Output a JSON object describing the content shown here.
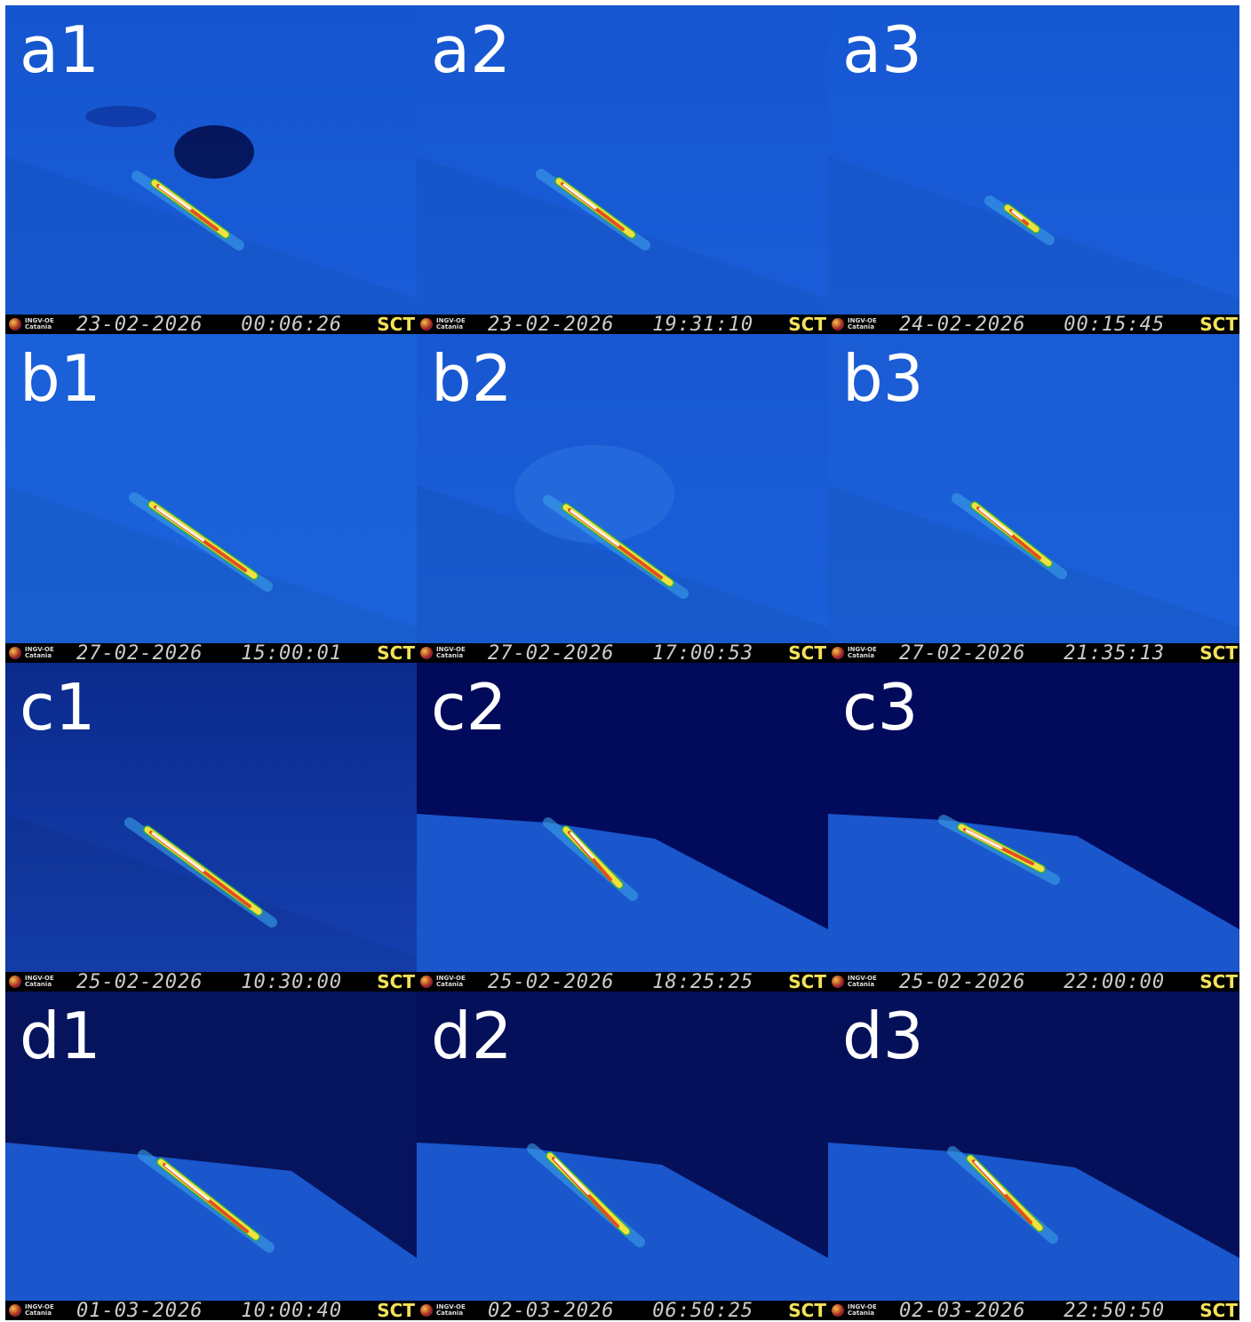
{
  "panels": [
    {
      "label": "a1",
      "date": "23-02-2026",
      "time": "00:06:26",
      "station": "SCT",
      "logo": [
        "INGV-OE",
        "Catania"
      ]
    },
    {
      "label": "a2",
      "date": "23-02-2026",
      "time": "19:31:10",
      "station": "SCT",
      "logo": [
        "INGV-OE",
        "Catania"
      ]
    },
    {
      "label": "a3",
      "date": "24-02-2026",
      "time": "00:15:45",
      "station": "SCT",
      "logo": [
        "INGV-OE",
        "Catania"
      ]
    },
    {
      "label": "b1",
      "date": "27-02-2026",
      "time": "15:00:01",
      "station": "SCT",
      "logo": [
        "INGV-OE",
        "Catania"
      ]
    },
    {
      "label": "b2",
      "date": "27-02-2026",
      "time": "17:00:53",
      "station": "SCT",
      "logo": [
        "INGV-OE",
        "Catania"
      ]
    },
    {
      "label": "b3",
      "date": "27-02-2026",
      "time": "21:35:13",
      "station": "SCT",
      "logo": [
        "INGV-OE",
        "Catania"
      ]
    },
    {
      "label": "c1",
      "date": "25-02-2026",
      "time": "10:30:00",
      "station": "SCT",
      "logo": [
        "INGV-OE",
        "Catania"
      ]
    },
    {
      "label": "c2",
      "date": "25-02-2026",
      "time": "18:25:25",
      "station": "SCT",
      "logo": [
        "INGV-OE",
        "Catania"
      ]
    },
    {
      "label": "c3",
      "date": "25-02-2026",
      "time": "22:00:00",
      "station": "SCT",
      "logo": [
        "INGV-OE",
        "Catania"
      ]
    },
    {
      "label": "d1",
      "date": "01-03-2026",
      "time": "10:00:40",
      "station": "SCT",
      "logo": [
        "INGV-OE",
        "Catania"
      ]
    },
    {
      "label": "d2",
      "date": "02-03-2026",
      "time": "06:50:25",
      "station": "SCT",
      "logo": [
        "INGV-OE",
        "Catania"
      ]
    },
    {
      "label": "d3",
      "date": "02-03-2026",
      "time": "22:50:50",
      "station": "SCT",
      "logo": [
        "INGV-OE",
        "Catania"
      ]
    }
  ]
}
